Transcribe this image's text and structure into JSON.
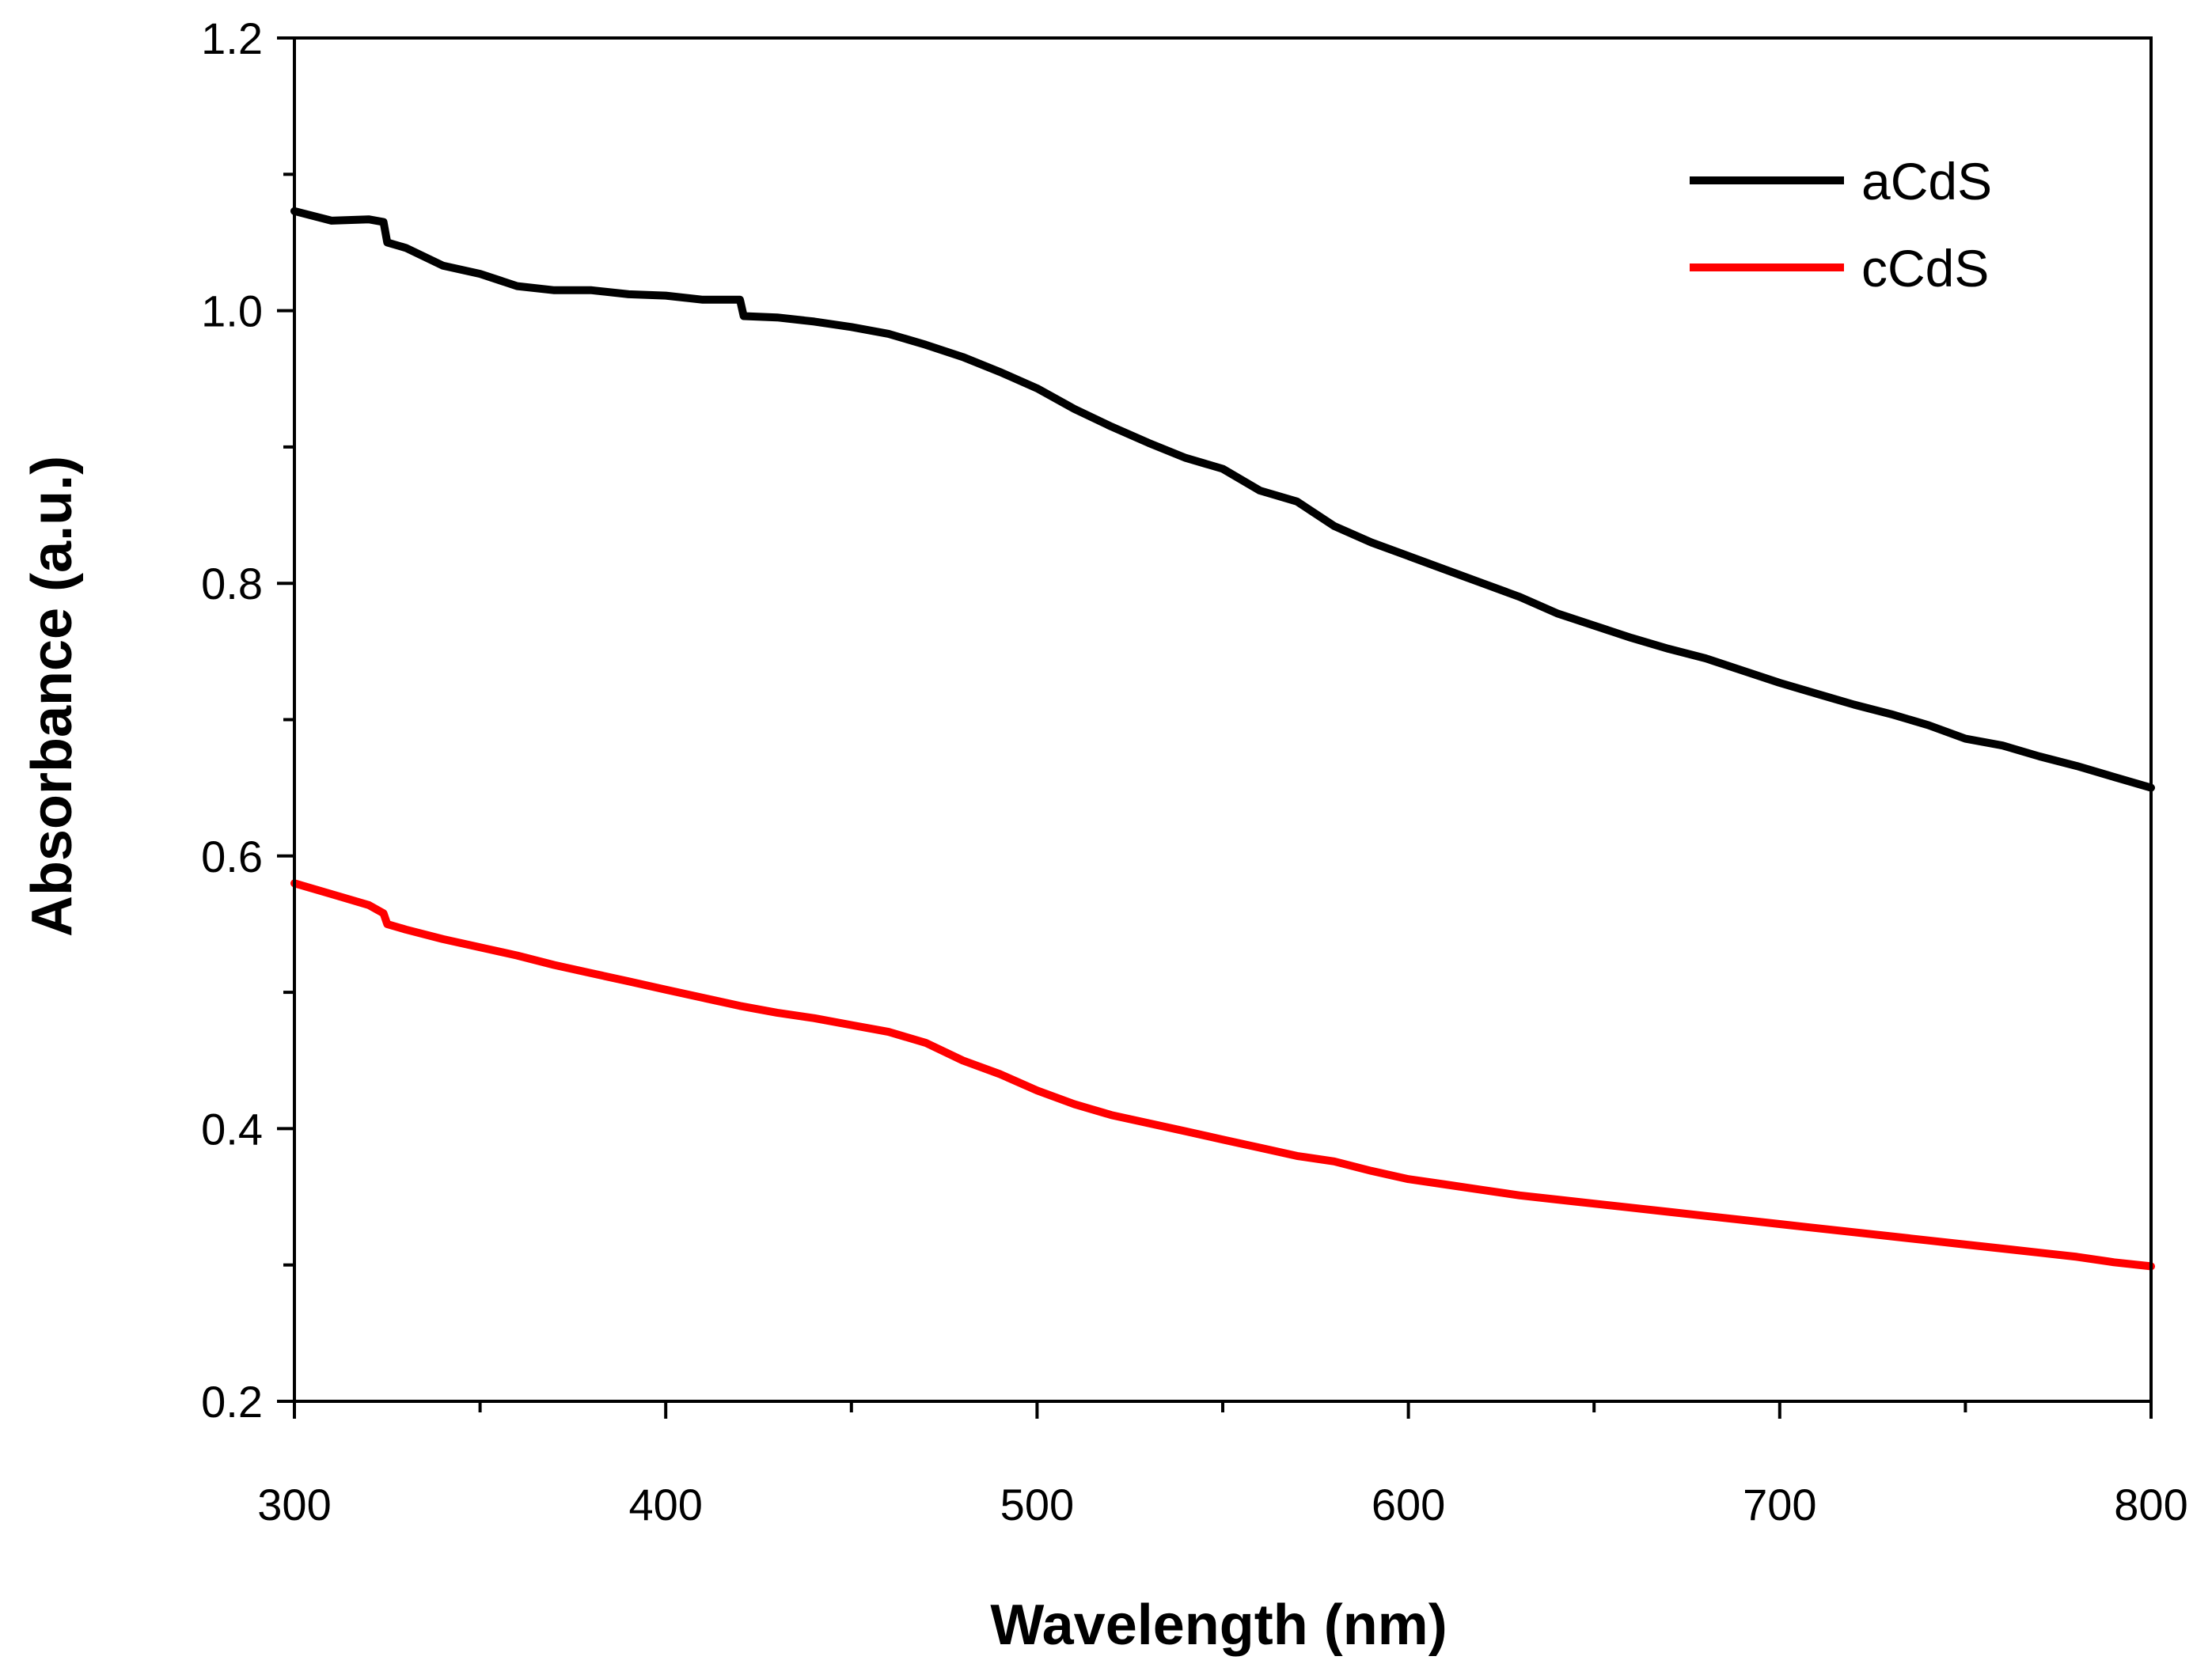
{
  "chart_data": {
    "type": "line",
    "title": "",
    "xlabel": "Wavelength (nm)",
    "ylabel": "Absorbance (a.u.)",
    "xlim": [
      300,
      800
    ],
    "ylim": [
      0.2,
      1.2
    ],
    "x_ticks": [
      300,
      400,
      500,
      600,
      700,
      800
    ],
    "x_tick_labels": [
      "300",
      "400",
      "500",
      "600",
      "700",
      "800"
    ],
    "y_ticks": [
      0.2,
      0.4,
      0.6,
      0.8,
      1.0,
      1.2
    ],
    "y_tick_labels": [
      "0.2",
      "0.4",
      "0.6",
      "0.8",
      "1.0",
      "1.2"
    ],
    "grid": false,
    "legend_position": "top-right",
    "series": [
      {
        "name": "aCdS",
        "color": "#000000",
        "x": [
          300,
          310,
          320,
          324,
          325,
          330,
          340,
          350,
          360,
          370,
          380,
          390,
          400,
          410,
          420,
          421,
          430,
          440,
          450,
          460,
          470,
          480,
          490,
          500,
          510,
          520,
          530,
          540,
          550,
          560,
          570,
          580,
          590,
          600,
          610,
          620,
          630,
          640,
          650,
          660,
          670,
          680,
          690,
          700,
          710,
          720,
          730,
          740,
          750,
          760,
          770,
          780,
          790,
          800
        ],
        "y": [
          1.073,
          1.066,
          1.067,
          1.065,
          1.05,
          1.046,
          1.033,
          1.027,
          1.018,
          1.015,
          1.015,
          1.012,
          1.011,
          1.008,
          1.008,
          0.996,
          0.995,
          0.992,
          0.988,
          0.983,
          0.975,
          0.966,
          0.955,
          0.943,
          0.928,
          0.915,
          0.903,
          0.892,
          0.884,
          0.868,
          0.86,
          0.842,
          0.83,
          0.82,
          0.81,
          0.8,
          0.79,
          0.778,
          0.769,
          0.76,
          0.752,
          0.745,
          0.736,
          0.727,
          0.719,
          0.711,
          0.704,
          0.696,
          0.686,
          0.681,
          0.673,
          0.666,
          0.658,
          0.65
        ]
      },
      {
        "name": "cCdS",
        "color": "#ff0000",
        "x": [
          300,
          310,
          320,
          324,
          325,
          330,
          340,
          350,
          360,
          370,
          380,
          390,
          400,
          410,
          420,
          430,
          440,
          450,
          460,
          470,
          480,
          490,
          500,
          510,
          520,
          530,
          540,
          550,
          560,
          570,
          580,
          590,
          600,
          610,
          620,
          630,
          640,
          650,
          660,
          670,
          680,
          690,
          700,
          710,
          720,
          730,
          740,
          750,
          760,
          770,
          780,
          790,
          800
        ],
        "y": [
          0.58,
          0.572,
          0.564,
          0.558,
          0.55,
          0.546,
          0.539,
          0.533,
          0.527,
          0.52,
          0.514,
          0.508,
          0.502,
          0.496,
          0.49,
          0.485,
          0.481,
          0.476,
          0.471,
          0.463,
          0.45,
          0.44,
          0.428,
          0.418,
          0.41,
          0.404,
          0.398,
          0.392,
          0.386,
          0.38,
          0.376,
          0.369,
          0.363,
          0.359,
          0.355,
          0.351,
          0.348,
          0.345,
          0.342,
          0.339,
          0.336,
          0.333,
          0.33,
          0.327,
          0.324,
          0.321,
          0.318,
          0.315,
          0.312,
          0.309,
          0.306,
          0.302,
          0.299
        ]
      }
    ]
  }
}
